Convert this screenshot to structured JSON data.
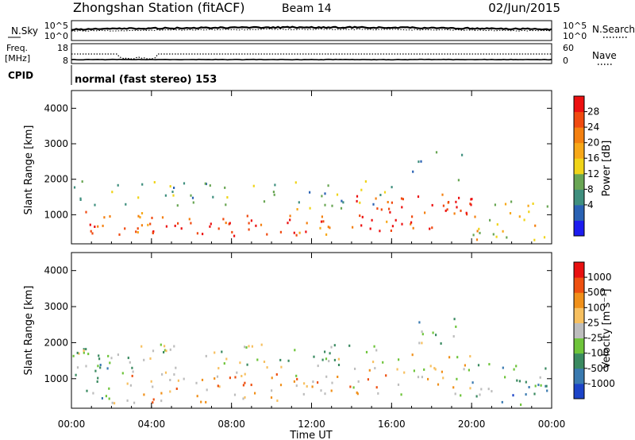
{
  "header": {
    "station_title": "Zhongshan Station (fitACF)",
    "beam_label": "Beam 14",
    "date": "02/Jun/2015"
  },
  "nsky_panel": {
    "left_label": "N.Sky",
    "right_label": "N.Search",
    "left_ticks": [
      "10^5",
      "10^0"
    ],
    "right_ticks": [
      "10^5",
      "10^0"
    ]
  },
  "freq_panel": {
    "left_label_top": "Freq.",
    "left_label_bottom": "[MHz]",
    "left_ticks": [
      "18",
      "8"
    ],
    "right_label": "Nave",
    "right_ticks": [
      "60",
      "0"
    ]
  },
  "cpid_panel": {
    "label": "CPID",
    "value_text": "normal (fast stereo) 153"
  },
  "chart_data": [
    {
      "type": "heatmap",
      "name": "power",
      "ylabel": "Slant Range [km]",
      "xlabel": "",
      "xlim": [
        0,
        24
      ],
      "ylim": [
        180,
        4500
      ],
      "yticks": [
        "4000",
        "3000",
        "2000",
        "1000"
      ],
      "ytick_values": [
        4000,
        3000,
        2000,
        1000
      ],
      "colorbar": {
        "label": "Power [dB]",
        "ticks": [
          "28",
          "24",
          "20",
          "16",
          "12",
          "8",
          "4"
        ],
        "tick_values": [
          28,
          24,
          20,
          16,
          12,
          8,
          4
        ],
        "colors": [
          "#1c1cf0",
          "#2a62b4",
          "#3f8f7e",
          "#69a654",
          "#f0d418",
          "#f7a818",
          "#f48010",
          "#f04a10",
          "#ec1010"
        ]
      },
      "echo_regions": [
        {
          "t0": 0.0,
          "t1": 4.0,
          "r0": 400,
          "r1": 1200,
          "level": 0.8
        },
        {
          "t0": 4.0,
          "t1": 10.0,
          "r0": 350,
          "r1": 1000,
          "level": 0.92
        },
        {
          "t0": 10.0,
          "t1": 13.5,
          "r0": 450,
          "r1": 1200,
          "level": 0.8
        },
        {
          "t0": 13.5,
          "t1": 16.0,
          "r0": 550,
          "r1": 1600,
          "level": 0.88
        },
        {
          "t0": 16.0,
          "t1": 20.0,
          "r0": 600,
          "r1": 1700,
          "level": 0.92
        },
        {
          "t0": 20.0,
          "t1": 24.0,
          "r0": 300,
          "r1": 1500,
          "level": 0.55
        },
        {
          "t0": 0.0,
          "t1": 16.0,
          "r0": 1200,
          "r1": 2000,
          "level": 0.35
        },
        {
          "t0": 17.0,
          "t1": 19.5,
          "r0": 2000,
          "r1": 2800,
          "level": 0.15
        }
      ]
    },
    {
      "type": "heatmap",
      "name": "velocity",
      "ylabel": "Slant Range [km]",
      "xlabel": "Time UT",
      "xlim": [
        0,
        24
      ],
      "ylim": [
        180,
        4500
      ],
      "xticks": [
        "00:00",
        "04:00",
        "08:00",
        "12:00",
        "16:00",
        "20:00",
        "00:00"
      ],
      "xtick_values": [
        0,
        4,
        8,
        12,
        16,
        20,
        24
      ],
      "yticks": [
        "4000",
        "3000",
        "2000",
        "1000"
      ],
      "ytick_values": [
        4000,
        3000,
        2000,
        1000
      ],
      "colorbar": {
        "label": "Velocity [m s⁻¹]",
        "ticks": [
          "1000",
          "500",
          "100",
          "25",
          "-25",
          "-100",
          "-500",
          "-1000"
        ],
        "tick_values": [
          1000,
          500,
          100,
          25,
          -25,
          -100,
          -500,
          -1000
        ],
        "colors": [
          "#1c44c8",
          "#3a7ab0",
          "#3a8a60",
          "#6ec43a",
          "#bdbdbd",
          "#f7c060",
          "#f0901a",
          "#ee5010",
          "#e81010"
        ]
      },
      "echo_regions": [
        {
          "t0": 0.0,
          "t1": 2.0,
          "r0": 400,
          "r1": 1800,
          "v": 0.25
        },
        {
          "t0": 2.0,
          "t1": 11.0,
          "r0": 350,
          "r1": 1300,
          "v": 0.68
        },
        {
          "t0": 11.0,
          "t1": 16.0,
          "r0": 450,
          "r1": 1300,
          "v": 0.62
        },
        {
          "t0": 16.0,
          "t1": 20.0,
          "r0": 550,
          "r1": 1700,
          "v": 0.55
        },
        {
          "t0": 20.0,
          "t1": 24.0,
          "r0": 300,
          "r1": 1500,
          "v": 0.3
        },
        {
          "t0": 0.0,
          "t1": 16.0,
          "r0": 1300,
          "r1": 2000,
          "v": 0.45
        },
        {
          "t0": 17.0,
          "t1": 19.5,
          "r0": 2000,
          "r1": 2700,
          "v": 0.4
        }
      ]
    }
  ]
}
